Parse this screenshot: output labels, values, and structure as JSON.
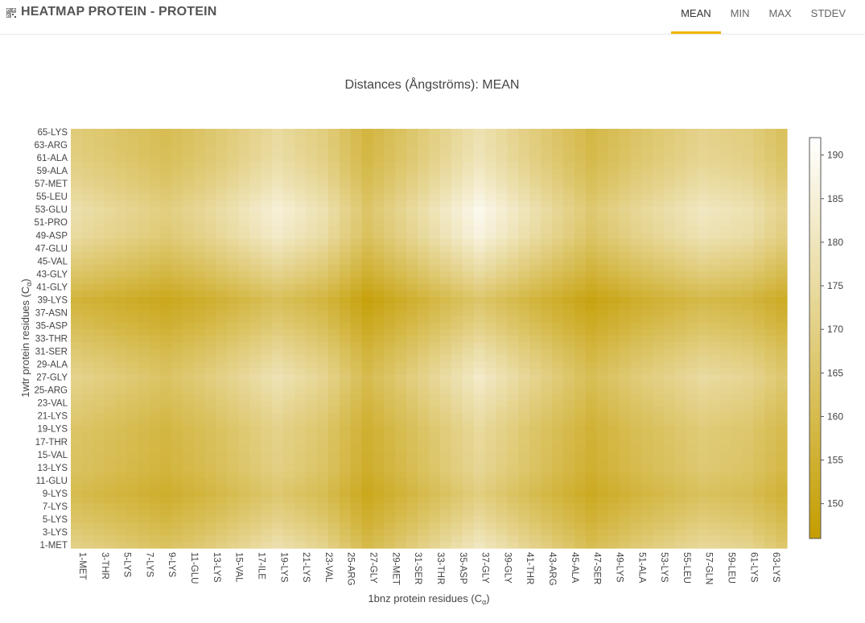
{
  "header": {
    "title": "HEATMAP PROTEIN - PROTEIN",
    "icon": "qr-grid-icon",
    "tabs": [
      {
        "label": "MEAN",
        "active": true
      },
      {
        "label": "MIN",
        "active": false
      },
      {
        "label": "MAX",
        "active": false
      },
      {
        "label": "STDEV",
        "active": false
      }
    ],
    "accent": "#f0b400"
  },
  "chart_data": {
    "type": "heatmap",
    "title": "Distances (Ångströms): MEAN",
    "xlabel": "1bnz protein residues (Cα)",
    "ylabel": "1wtr protein residues (Cα)",
    "x_tick_labels": [
      "1-MET",
      "3-THR",
      "5-LYS",
      "7-LYS",
      "9-LYS",
      "11-GLU",
      "13-LYS",
      "15-VAL",
      "17-ILE",
      "19-LYS",
      "21-LYS",
      "23-VAL",
      "25-ARG",
      "27-GLY",
      "29-MET",
      "31-SER",
      "33-THR",
      "35-ASP",
      "37-GLY",
      "39-GLY",
      "41-THR",
      "43-ARG",
      "45-ALA",
      "47-SER",
      "49-LYS",
      "51-ALA",
      "53-LYS",
      "55-LEU",
      "57-GLN",
      "59-LEU",
      "61-LYS",
      "63-LYS"
    ],
    "y_tick_labels": [
      "1-MET",
      "3-LYS",
      "5-LYS",
      "7-LYS",
      "9-LYS",
      "11-GLU",
      "13-LYS",
      "15-VAL",
      "17-THR",
      "19-LYS",
      "21-LYS",
      "23-VAL",
      "25-ARG",
      "27-GLY",
      "29-ALA",
      "31-SER",
      "33-THR",
      "35-ASP",
      "37-ASN",
      "39-LYS",
      "41-GLY",
      "43-GLY",
      "45-VAL",
      "47-GLU",
      "49-ASP",
      "51-PRO",
      "53-GLU",
      "55-LEU",
      "57-MET",
      "59-ALA",
      "61-ALA",
      "63-ARG",
      "65-LYS"
    ],
    "x_count": 64,
    "y_count": 65,
    "colorbar": {
      "min": 146,
      "max": 192,
      "ticks": [
        150,
        155,
        160,
        165,
        170,
        175,
        180,
        185,
        190
      ],
      "color_low": "#c49d00",
      "color_high": "#ffffff"
    },
    "x_profile_description_values": [
      {
        "x": 1,
        "v": 0.45
      },
      {
        "x": 5,
        "v": 0.3
      },
      {
        "x": 9,
        "v": 0.15
      },
      {
        "x": 13,
        "v": 0.35
      },
      {
        "x": 19,
        "v": 0.75
      },
      {
        "x": 23,
        "v": 0.5
      },
      {
        "x": 27,
        "v": 0.0
      },
      {
        "x": 31,
        "v": 0.35
      },
      {
        "x": 37,
        "v": 0.9
      },
      {
        "x": 41,
        "v": 0.55
      },
      {
        "x": 47,
        "v": 0.05
      },
      {
        "x": 51,
        "v": 0.3
      },
      {
        "x": 57,
        "v": 0.6
      },
      {
        "x": 61,
        "v": 0.5
      },
      {
        "x": 64,
        "v": 0.25
      }
    ],
    "y_profile_description_values": [
      {
        "y": 1,
        "v": 0.6
      },
      {
        "y": 5,
        "v": 0.35
      },
      {
        "y": 9,
        "v": 0.15
      },
      {
        "y": 13,
        "v": 0.3
      },
      {
        "y": 19,
        "v": 0.35
      },
      {
        "y": 27,
        "v": 0.65
      },
      {
        "y": 31,
        "v": 0.45
      },
      {
        "y": 35,
        "v": 0.2
      },
      {
        "y": 39,
        "v": 0.0
      },
      {
        "y": 43,
        "v": 0.35
      },
      {
        "y": 49,
        "v": 0.8
      },
      {
        "y": 53,
        "v": 0.9
      },
      {
        "y": 57,
        "v": 0.7
      },
      {
        "y": 61,
        "v": 0.55
      },
      {
        "y": 65,
        "v": 0.5
      }
    ]
  }
}
